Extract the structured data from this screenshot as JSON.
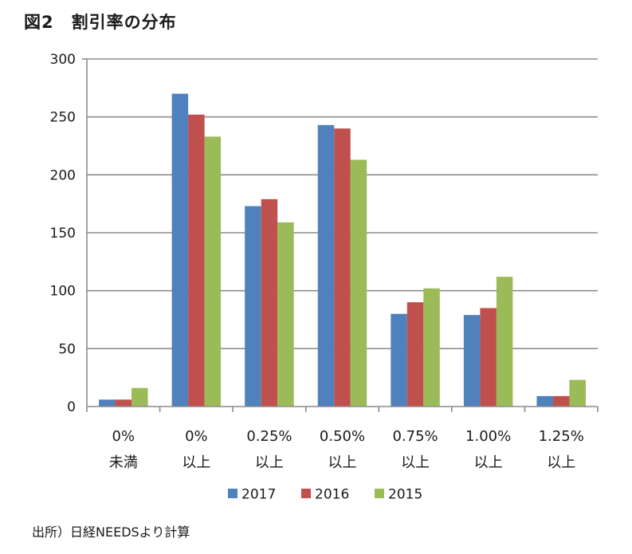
{
  "title": "図2　割引率の分布",
  "source": "出所）日経NEEDSより計算",
  "chart_data": {
    "type": "bar",
    "categories": [
      [
        "0%",
        "未満"
      ],
      [
        "0%",
        "以上"
      ],
      [
        "0.25%",
        "以上"
      ],
      [
        "0.50%",
        "以上"
      ],
      [
        "0.75%",
        "以上"
      ],
      [
        "1.00%",
        "以上"
      ],
      [
        "1.25%",
        "以上"
      ]
    ],
    "series": [
      {
        "name": "2017",
        "color": "#4f81bd",
        "values": [
          6,
          270,
          173,
          243,
          80,
          79,
          9
        ]
      },
      {
        "name": "2016",
        "color": "#c0504d",
        "values": [
          6,
          252,
          179,
          240,
          90,
          85,
          9
        ]
      },
      {
        "name": "2015",
        "color": "#9bbb59",
        "values": [
          16,
          233,
          159,
          213,
          102,
          112,
          23
        ]
      }
    ],
    "ylim": [
      0,
      300
    ],
    "yticks": [
      0,
      50,
      100,
      150,
      200,
      250,
      300
    ],
    "grid": true,
    "legend": "bottom"
  }
}
